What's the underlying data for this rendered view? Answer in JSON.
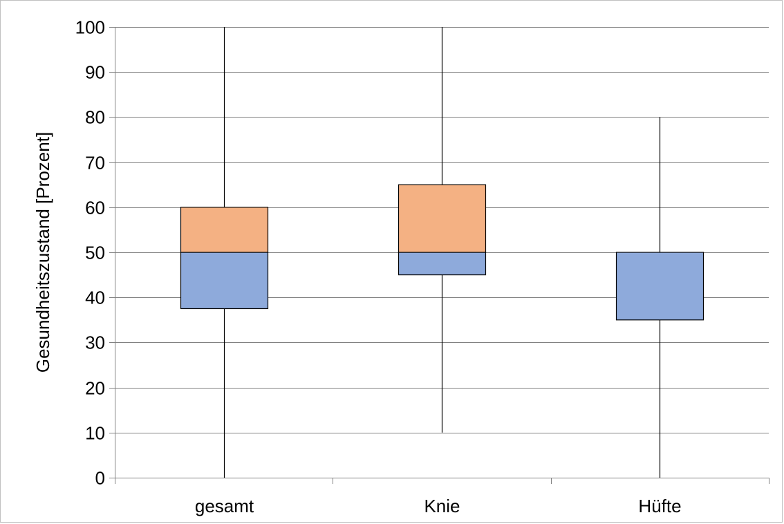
{
  "chart_data": {
    "type": "box",
    "categories": [
      "gesamt",
      "Knie",
      "Hüfte"
    ],
    "ylabel": "Gesundheitszustand [Prozent]",
    "xlabel": "",
    "ylim": [
      0,
      100
    ],
    "yticks": [
      0,
      10,
      20,
      30,
      40,
      50,
      60,
      70,
      80,
      90,
      100
    ],
    "grid": true,
    "boxes": [
      {
        "category": "gesamt",
        "min": 0,
        "q1": 37.5,
        "median": 50,
        "q3": 60,
        "max": 100
      },
      {
        "category": "Knie",
        "min": 10,
        "q1": 45,
        "median": 50,
        "q3": 65,
        "max": 100
      },
      {
        "category": "Hüfte",
        "min": 0,
        "q1": 35,
        "median": 50,
        "q3": 50,
        "max": 80
      }
    ],
    "colors": {
      "lower_box": "#8eaadb",
      "upper_box": "#f4b183",
      "box_edge": "#000000",
      "whisker": "#000000",
      "grid": "#808080",
      "axis": "#808080"
    }
  }
}
